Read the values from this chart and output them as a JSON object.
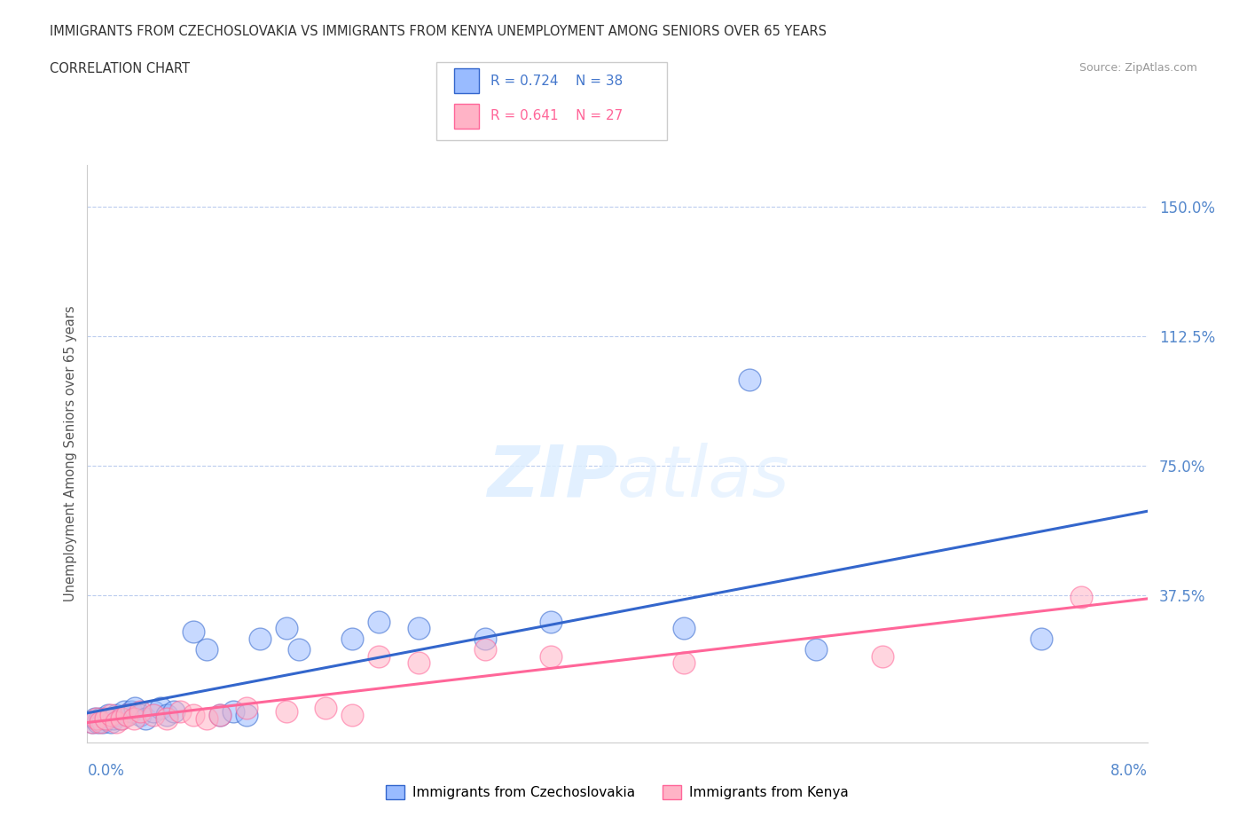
{
  "title_line1": "IMMIGRANTS FROM CZECHOSLOVAKIA VS IMMIGRANTS FROM KENYA UNEMPLOYMENT AMONG SENIORS OVER 65 YEARS",
  "title_line2": "CORRELATION CHART",
  "source": "Source: ZipAtlas.com",
  "ylabel": "Unemployment Among Seniors over 65 years",
  "xmin": 0.0,
  "xmax": 8.0,
  "ymin": -5.0,
  "ymax": 162.0,
  "color_czech": "#99BBFF",
  "color_kenya": "#FFB3C6",
  "color_czech_line": "#3366CC",
  "color_kenya_line": "#FF6699",
  "watermark_zip": "ZIP",
  "watermark_atlas": "atlas",
  "czech_x": [
    0.04,
    0.06,
    0.08,
    0.1,
    0.12,
    0.14,
    0.16,
    0.18,
    0.2,
    0.22,
    0.25,
    0.28,
    0.3,
    0.33,
    0.36,
    0.4,
    0.44,
    0.5,
    0.55,
    0.6,
    0.65,
    0.8,
    0.9,
    1.0,
    1.1,
    1.2,
    1.3,
    1.5,
    1.6,
    2.0,
    2.2,
    2.5,
    3.0,
    3.5,
    4.5,
    5.0,
    5.5,
    7.2
  ],
  "czech_y": [
    1,
    2,
    1,
    2,
    1,
    2,
    3,
    1,
    2,
    3,
    2,
    4,
    3,
    4,
    5,
    3,
    2,
    4,
    5,
    3,
    4,
    27,
    22,
    3,
    4,
    3,
    25,
    28,
    22,
    25,
    30,
    28,
    25,
    30,
    28,
    100,
    22,
    25
  ],
  "kenya_x": [
    0.04,
    0.07,
    0.1,
    0.14,
    0.18,
    0.22,
    0.26,
    0.3,
    0.35,
    0.4,
    0.5,
    0.6,
    0.7,
    0.8,
    0.9,
    1.0,
    1.2,
    1.5,
    1.8,
    2.0,
    2.2,
    2.5,
    3.0,
    3.5,
    4.5,
    6.0,
    7.5
  ],
  "kenya_y": [
    1,
    2,
    1,
    2,
    3,
    1,
    2,
    3,
    2,
    4,
    3,
    2,
    4,
    3,
    2,
    3,
    5,
    4,
    5,
    3,
    20,
    18,
    22,
    20,
    18,
    20,
    37
  ]
}
